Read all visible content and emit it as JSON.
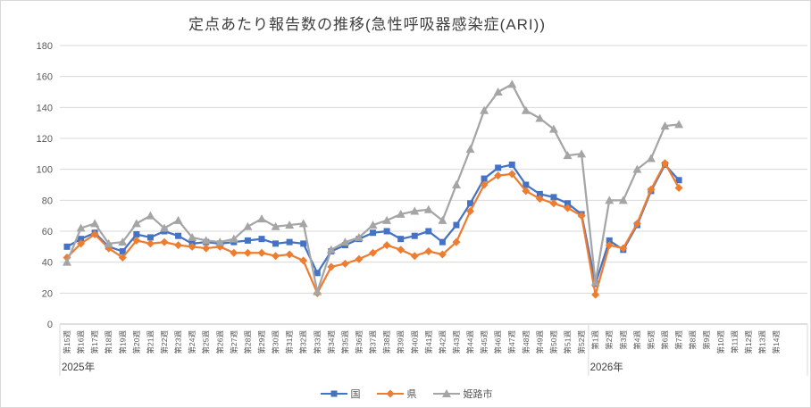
{
  "title": "定点あたり報告数の推移(急性呼吸器感染症(ARI))",
  "chart_data": {
    "type": "line",
    "categories": [
      "第15週",
      "第16週",
      "第17週",
      "第18週",
      "第19週",
      "第20週",
      "第21週",
      "第22週",
      "第23週",
      "第24週",
      "第25週",
      "第26週",
      "第27週",
      "第28週",
      "第29週",
      "第30週",
      "第31週",
      "第32週",
      "第33週",
      "第34週",
      "第35週",
      "第36週",
      "第37週",
      "第38週",
      "第39週",
      "第40週",
      "第41週",
      "第42週",
      "第43週",
      "第44週",
      "第45週",
      "第46週",
      "第47週",
      "第48週",
      "第49週",
      "第50週",
      "第51週",
      "第52週",
      "第1週",
      "第2週",
      "第3週",
      "第4週",
      "第5週",
      "第6週",
      "第7週",
      "第8週",
      "第9週",
      "第10週",
      "第11週",
      "第12週",
      "第13週",
      "第14週"
    ],
    "year_groups": [
      {
        "label": "2025年",
        "start_index": 0
      },
      {
        "label": "2026年",
        "start_index": 38
      }
    ],
    "series": [
      {
        "name": "国",
        "color": "#4472C4",
        "marker": "square",
        "values": [
          50,
          55,
          59,
          50,
          47,
          58,
          56,
          60,
          57,
          52,
          53,
          52,
          53,
          54,
          55,
          52,
          53,
          52,
          33,
          47,
          51,
          55,
          59,
          60,
          55,
          57,
          60,
          53,
          64,
          78,
          94,
          101,
          103,
          90,
          84,
          82,
          78,
          71,
          26,
          54,
          48,
          64,
          86,
          103,
          93
        ]
      },
      {
        "name": "県",
        "color": "#ED7D31",
        "marker": "diamond",
        "values": [
          43,
          52,
          58,
          49,
          43,
          54,
          52,
          53,
          51,
          50,
          49,
          50,
          46,
          46,
          46,
          44,
          45,
          41,
          20,
          37,
          39,
          42,
          46,
          51,
          48,
          44,
          47,
          45,
          53,
          73,
          90,
          96,
          97,
          86,
          81,
          78,
          75,
          70,
          19,
          51,
          49,
          65,
          87,
          104,
          88
        ]
      },
      {
        "name": "姫路市",
        "color": "#A5A5A5",
        "marker": "triangle",
        "values": [
          40,
          62,
          65,
          52,
          53,
          65,
          70,
          62,
          67,
          56,
          54,
          53,
          55,
          63,
          68,
          63,
          64,
          65,
          21,
          48,
          53,
          56,
          64,
          67,
          71,
          73,
          74,
          67,
          90,
          113,
          138,
          150,
          155,
          138,
          133,
          126,
          109,
          110,
          27,
          80,
          80,
          100,
          107,
          128,
          129
        ]
      }
    ],
    "ylim": [
      0,
      180
    ],
    "ytick_step": 20,
    "yticks": [
      "0",
      "20",
      "40",
      "60",
      "80",
      "100",
      "120",
      "140",
      "160",
      "180"
    ],
    "grid": true,
    "legend_position": "bottom",
    "grid_color": "#d9d9d9",
    "axis_color": "#bfbfbf",
    "tick_label_color": "#595959"
  }
}
